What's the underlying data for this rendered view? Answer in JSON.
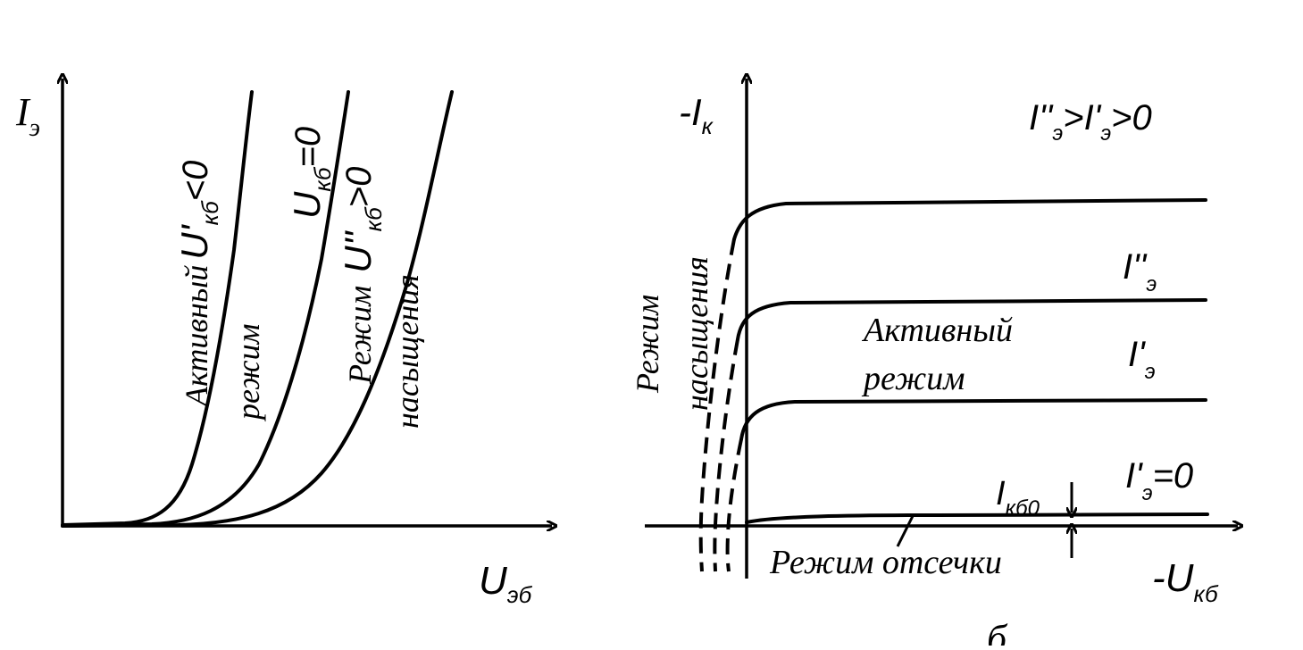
{
  "left": {
    "y_axis_label": "I",
    "y_axis_sub": "э",
    "x_axis_label": "U",
    "x_axis_sub": "эб",
    "curve1_label_a": "Активный",
    "curve1_label_b": "U'",
    "curve1_label_sub": "кб",
    "curve1_label_c": "<0",
    "curve1_region": "режим",
    "curve2_label_a": "U",
    "curve2_label_sub": "кб",
    "curve2_label_c": "=0",
    "curve3_label_a": "Режим",
    "curve3_label_b": "U''",
    "curve3_label_sub": "кб",
    "curve3_label_c": ">0",
    "curve3_region": "насыщения"
  },
  "right": {
    "y_axis_label": "-I",
    "y_axis_sub": "к",
    "x_axis_label": "-U",
    "x_axis_sub": "кб",
    "legend_a": "I''",
    "legend_sub1": "э",
    "legend_b": ">I'",
    "legend_sub2": "э",
    "legend_c": ">0",
    "curve_label_2": "I''",
    "curve_label_2_sub": "э",
    "curve_label_1": "I'",
    "curve_label_1_sub": "э",
    "curve_label_0": "I'",
    "curve_label_0_sub": "э",
    "curve_label_0_val": "=0",
    "active_region_a": "Активный",
    "active_region_b": "режим",
    "saturation_a": "Режим",
    "saturation_b": "насыщения",
    "cutoff": "Режим отсечки",
    "ikb0": "I",
    "ikb0_sub": "кб0"
  },
  "caption": "б"
}
